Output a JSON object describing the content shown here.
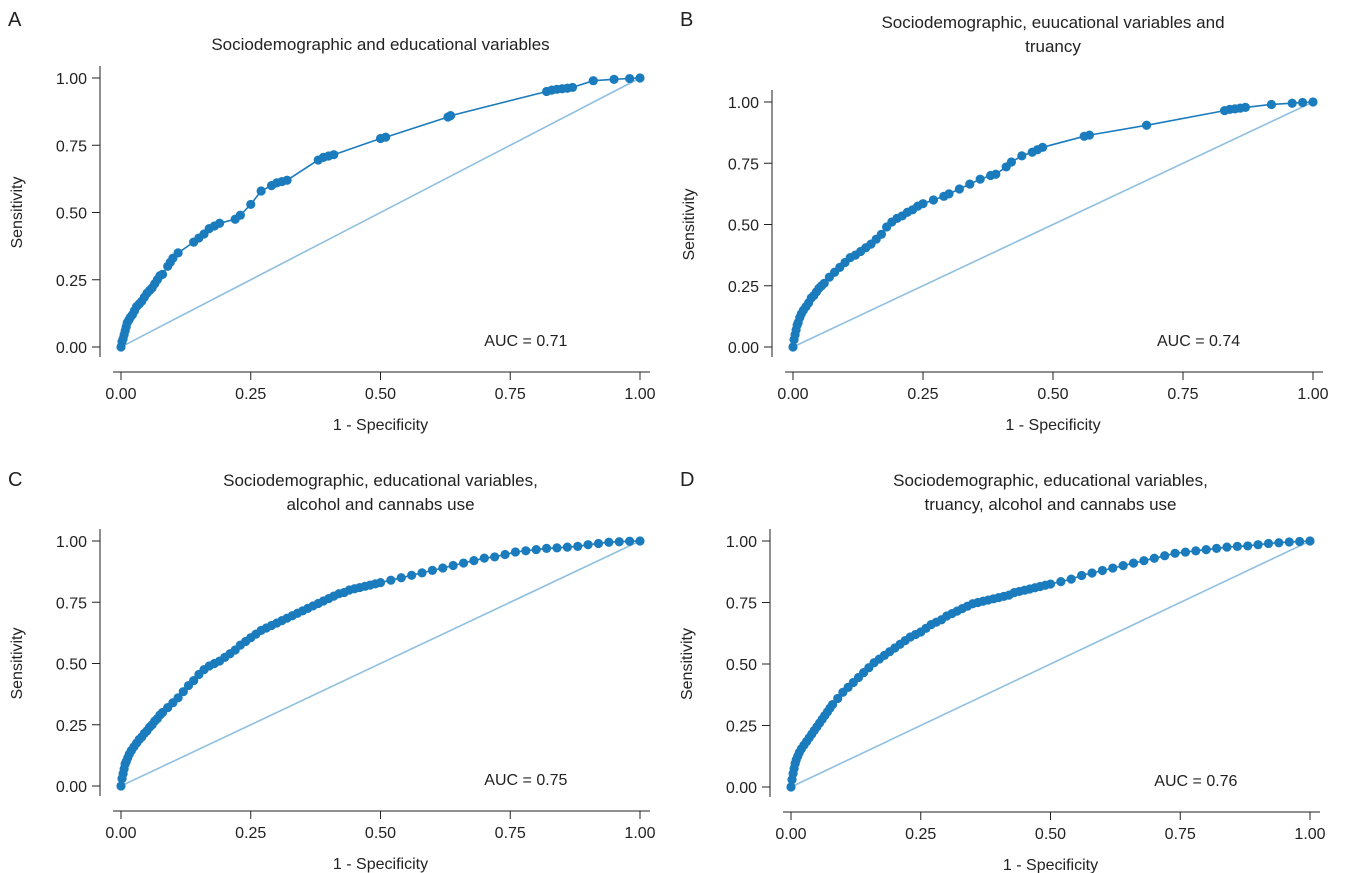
{
  "figure": {
    "line_color": "#1a7bbd",
    "point_color": "#1a7bbd",
    "reference_color": "#8fbfe0"
  },
  "chart_data": [
    {
      "type": "line",
      "letter": "A",
      "title_lines": [
        "Sociodemographic and educational variables"
      ],
      "xlabel": "1 - Specificity",
      "ylabel": "Sensitivity",
      "xlim": [
        0,
        1
      ],
      "ylim": [
        0,
        1
      ],
      "xticks": [
        "0.00",
        "0.25",
        "0.50",
        "0.75",
        "1.00"
      ],
      "yticks": [
        "0.00",
        "0.25",
        "0.50",
        "0.75",
        "1.00"
      ],
      "auc_label": "AUC = 0.71",
      "reference_line": {
        "x": [
          0,
          1
        ],
        "y": [
          0,
          1
        ]
      },
      "series": [
        {
          "x": [
            0,
            0.002,
            0.004,
            0.006,
            0.008,
            0.01,
            0.012,
            0.015,
            0.018,
            0.022,
            0.026,
            0.03,
            0.035,
            0.04,
            0.045,
            0.05,
            0.055,
            0.06,
            0.065,
            0.07,
            0.075,
            0.08,
            0.09,
            0.095,
            0.1,
            0.11,
            0.14,
            0.15,
            0.16,
            0.17,
            0.18,
            0.19,
            0.22,
            0.23,
            0.25,
            0.27,
            0.29,
            0.3,
            0.31,
            0.32,
            0.38,
            0.39,
            0.4,
            0.41,
            0.5,
            0.51,
            0.63,
            0.635,
            0.82,
            0.83,
            0.84,
            0.85,
            0.86,
            0.87,
            0.91,
            0.95,
            0.98,
            1.0
          ],
          "y": [
            0,
            0.02,
            0.03,
            0.045,
            0.06,
            0.075,
            0.09,
            0.1,
            0.11,
            0.12,
            0.135,
            0.15,
            0.16,
            0.17,
            0.185,
            0.2,
            0.21,
            0.22,
            0.235,
            0.25,
            0.265,
            0.27,
            0.3,
            0.315,
            0.33,
            0.35,
            0.39,
            0.405,
            0.42,
            0.44,
            0.45,
            0.46,
            0.475,
            0.49,
            0.53,
            0.58,
            0.6,
            0.61,
            0.615,
            0.62,
            0.695,
            0.705,
            0.71,
            0.715,
            0.775,
            0.78,
            0.855,
            0.86,
            0.95,
            0.955,
            0.958,
            0.96,
            0.962,
            0.965,
            0.99,
            0.995,
            0.998,
            1.0
          ]
        }
      ]
    },
    {
      "type": "line",
      "letter": "B",
      "title_lines": [
        "Sociodemographic, euucational variables and",
        "truancy"
      ],
      "xlabel": "1 - Specificity",
      "ylabel": "Sensitivity",
      "xlim": [
        0,
        1
      ],
      "ylim": [
        0,
        1
      ],
      "xticks": [
        "0.00",
        "0.25",
        "0.50",
        "0.75",
        "1.00"
      ],
      "yticks": [
        "0.00",
        "0.25",
        "0.50",
        "0.75",
        "1.00"
      ],
      "auc_label": "AUC = 0.74",
      "reference_line": {
        "x": [
          0,
          1
        ],
        "y": [
          0,
          1
        ]
      },
      "series": [
        {
          "x": [
            0,
            0.002,
            0.004,
            0.006,
            0.008,
            0.01,
            0.013,
            0.016,
            0.02,
            0.025,
            0.03,
            0.035,
            0.04,
            0.045,
            0.05,
            0.055,
            0.06,
            0.07,
            0.08,
            0.09,
            0.1,
            0.11,
            0.12,
            0.13,
            0.14,
            0.15,
            0.16,
            0.17,
            0.18,
            0.19,
            0.2,
            0.21,
            0.22,
            0.23,
            0.24,
            0.25,
            0.27,
            0.29,
            0.3,
            0.32,
            0.34,
            0.36,
            0.38,
            0.39,
            0.41,
            0.42,
            0.44,
            0.46,
            0.47,
            0.48,
            0.56,
            0.57,
            0.68,
            0.83,
            0.84,
            0.85,
            0.86,
            0.87,
            0.92,
            0.96,
            0.98,
            1.0
          ],
          "y": [
            0,
            0.03,
            0.05,
            0.07,
            0.09,
            0.1,
            0.12,
            0.135,
            0.15,
            0.165,
            0.18,
            0.2,
            0.21,
            0.225,
            0.24,
            0.25,
            0.26,
            0.285,
            0.305,
            0.325,
            0.345,
            0.365,
            0.375,
            0.39,
            0.405,
            0.42,
            0.44,
            0.46,
            0.49,
            0.51,
            0.525,
            0.535,
            0.55,
            0.56,
            0.575,
            0.585,
            0.6,
            0.615,
            0.625,
            0.645,
            0.665,
            0.685,
            0.7,
            0.705,
            0.735,
            0.755,
            0.78,
            0.795,
            0.805,
            0.815,
            0.86,
            0.865,
            0.905,
            0.965,
            0.97,
            0.972,
            0.975,
            0.978,
            0.99,
            0.995,
            0.998,
            1.0
          ]
        }
      ]
    },
    {
      "type": "line",
      "letter": "C",
      "title_lines": [
        "Sociodemographic, educational variables,",
        "alcohol and cannabs use"
      ],
      "xlabel": "1 - Specificity",
      "ylabel": "Sensitivity",
      "xlim": [
        0,
        1
      ],
      "ylim": [
        0,
        1
      ],
      "xticks": [
        "0.00",
        "0.25",
        "0.50",
        "0.75",
        "1.00"
      ],
      "yticks": [
        "0.00",
        "0.25",
        "0.50",
        "0.75",
        "1.00"
      ],
      "auc_label": "AUC = 0.75",
      "reference_line": {
        "x": [
          0,
          1
        ],
        "y": [
          0,
          1
        ]
      },
      "series": [
        {
          "x": [
            0,
            0.002,
            0.004,
            0.006,
            0.008,
            0.01,
            0.013,
            0.016,
            0.02,
            0.025,
            0.03,
            0.035,
            0.04,
            0.045,
            0.05,
            0.055,
            0.06,
            0.065,
            0.07,
            0.075,
            0.08,
            0.09,
            0.1,
            0.11,
            0.12,
            0.13,
            0.14,
            0.15,
            0.16,
            0.17,
            0.18,
            0.19,
            0.2,
            0.21,
            0.22,
            0.23,
            0.24,
            0.25,
            0.26,
            0.27,
            0.28,
            0.29,
            0.3,
            0.31,
            0.32,
            0.33,
            0.34,
            0.35,
            0.36,
            0.37,
            0.38,
            0.39,
            0.4,
            0.41,
            0.42,
            0.43,
            0.44,
            0.45,
            0.46,
            0.47,
            0.48,
            0.49,
            0.5,
            0.52,
            0.54,
            0.56,
            0.58,
            0.6,
            0.62,
            0.64,
            0.66,
            0.68,
            0.7,
            0.72,
            0.74,
            0.76,
            0.78,
            0.8,
            0.82,
            0.84,
            0.86,
            0.88,
            0.9,
            0.92,
            0.94,
            0.96,
            0.98,
            1.0
          ],
          "y": [
            0,
            0.03,
            0.05,
            0.07,
            0.09,
            0.1,
            0.115,
            0.13,
            0.145,
            0.16,
            0.175,
            0.19,
            0.2,
            0.215,
            0.225,
            0.24,
            0.25,
            0.265,
            0.275,
            0.29,
            0.3,
            0.32,
            0.34,
            0.36,
            0.385,
            0.41,
            0.43,
            0.455,
            0.475,
            0.49,
            0.5,
            0.51,
            0.525,
            0.54,
            0.555,
            0.575,
            0.59,
            0.605,
            0.62,
            0.635,
            0.645,
            0.655,
            0.665,
            0.675,
            0.685,
            0.695,
            0.705,
            0.715,
            0.725,
            0.735,
            0.745,
            0.755,
            0.765,
            0.775,
            0.785,
            0.79,
            0.8,
            0.805,
            0.81,
            0.815,
            0.82,
            0.825,
            0.83,
            0.84,
            0.85,
            0.86,
            0.87,
            0.88,
            0.89,
            0.9,
            0.91,
            0.92,
            0.93,
            0.935,
            0.945,
            0.955,
            0.96,
            0.965,
            0.97,
            0.972,
            0.975,
            0.978,
            0.985,
            0.99,
            0.995,
            0.997,
            0.999,
            1.0
          ]
        }
      ]
    },
    {
      "type": "line",
      "letter": "D",
      "title_lines": [
        "Sociodemographic, educational variables,",
        "truancy, alcohol and cannabs use"
      ],
      "xlabel": "1 - Specificity",
      "ylabel": "Sensitivity",
      "xlim": [
        0,
        1
      ],
      "ylim": [
        0,
        1
      ],
      "xticks": [
        "0.00",
        "0.25",
        "0.50",
        "0.75",
        "1.00"
      ],
      "yticks": [
        "0.00",
        "0.25",
        "0.50",
        "0.75",
        "1.00"
      ],
      "auc_label": "AUC = 0.76",
      "reference_line": {
        "x": [
          0,
          1
        ],
        "y": [
          0,
          1
        ]
      },
      "series": [
        {
          "x": [
            0,
            0.002,
            0.004,
            0.006,
            0.008,
            0.01,
            0.013,
            0.016,
            0.02,
            0.025,
            0.03,
            0.035,
            0.04,
            0.045,
            0.05,
            0.055,
            0.06,
            0.065,
            0.07,
            0.075,
            0.08,
            0.09,
            0.1,
            0.11,
            0.12,
            0.13,
            0.14,
            0.15,
            0.16,
            0.17,
            0.18,
            0.19,
            0.2,
            0.21,
            0.22,
            0.23,
            0.24,
            0.25,
            0.26,
            0.27,
            0.28,
            0.29,
            0.3,
            0.31,
            0.32,
            0.33,
            0.34,
            0.35,
            0.36,
            0.37,
            0.38,
            0.39,
            0.4,
            0.41,
            0.42,
            0.43,
            0.44,
            0.45,
            0.46,
            0.47,
            0.48,
            0.49,
            0.5,
            0.52,
            0.54,
            0.56,
            0.58,
            0.6,
            0.62,
            0.64,
            0.66,
            0.68,
            0.7,
            0.72,
            0.74,
            0.76,
            0.78,
            0.8,
            0.82,
            0.84,
            0.86,
            0.88,
            0.9,
            0.92,
            0.94,
            0.96,
            0.98,
            1.0
          ],
          "y": [
            0,
            0.03,
            0.055,
            0.075,
            0.095,
            0.11,
            0.125,
            0.14,
            0.155,
            0.17,
            0.185,
            0.2,
            0.215,
            0.23,
            0.245,
            0.26,
            0.275,
            0.29,
            0.305,
            0.32,
            0.335,
            0.36,
            0.385,
            0.405,
            0.425,
            0.445,
            0.465,
            0.485,
            0.505,
            0.52,
            0.535,
            0.55,
            0.565,
            0.58,
            0.595,
            0.61,
            0.62,
            0.63,
            0.645,
            0.66,
            0.67,
            0.68,
            0.695,
            0.705,
            0.715,
            0.725,
            0.735,
            0.745,
            0.75,
            0.755,
            0.76,
            0.765,
            0.77,
            0.775,
            0.78,
            0.79,
            0.795,
            0.8,
            0.805,
            0.81,
            0.815,
            0.82,
            0.825,
            0.835,
            0.845,
            0.86,
            0.87,
            0.88,
            0.89,
            0.9,
            0.91,
            0.92,
            0.93,
            0.94,
            0.95,
            0.955,
            0.96,
            0.965,
            0.97,
            0.975,
            0.978,
            0.98,
            0.985,
            0.99,
            0.993,
            0.996,
            0.998,
            1.0
          ]
        }
      ]
    }
  ]
}
